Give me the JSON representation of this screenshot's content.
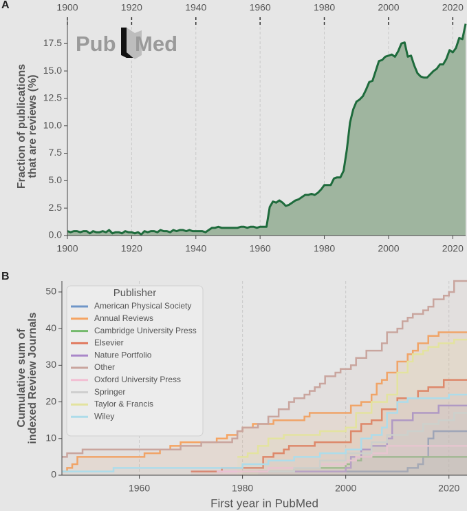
{
  "logo": {
    "left": "Pub",
    "right": "Med"
  },
  "chart_data": [
    {
      "type": "area",
      "panel_label": "A",
      "ylabel": [
        "Fraction of publications",
        "that are reviews (%)"
      ],
      "color": "#1e6b3c",
      "fill_color": "#9fb59f",
      "grid": "x",
      "x_top_axis": true,
      "xlim": [
        1900,
        2024
      ],
      "xticks": [
        1900,
        1920,
        1940,
        1960,
        1980,
        2000,
        2020
      ],
      "ylim": [
        0,
        19.9
      ],
      "yticks": [
        {
          "value": 0,
          "label": "0.0"
        },
        2.5,
        {
          "value": 5,
          "label": "5.0"
        },
        7.5,
        {
          "value": 10,
          "label": "10.0"
        },
        12.5,
        {
          "value": 15,
          "label": "15.0"
        },
        17.5
      ],
      "x": [
        1900,
        1901,
        1902,
        1903,
        1904,
        1905,
        1906,
        1907,
        1908,
        1909,
        1910,
        1911,
        1912,
        1913,
        1914,
        1915,
        1916,
        1917,
        1918,
        1919,
        1920,
        1921,
        1922,
        1923,
        1924,
        1925,
        1926,
        1927,
        1928,
        1929,
        1930,
        1931,
        1932,
        1933,
        1934,
        1935,
        1936,
        1937,
        1938,
        1939,
        1940,
        1941,
        1942,
        1943,
        1944,
        1945,
        1946,
        1947,
        1948,
        1949,
        1950,
        1951,
        1952,
        1953,
        1954,
        1955,
        1956,
        1957,
        1958,
        1959,
        1960,
        1961,
        1962,
        1963,
        1964,
        1965,
        1966,
        1967,
        1968,
        1969,
        1970,
        1971,
        1972,
        1973,
        1974,
        1975,
        1976,
        1977,
        1978,
        1979,
        1980,
        1981,
        1982,
        1983,
        1984,
        1985,
        1986,
        1987,
        1988,
        1989,
        1990,
        1991,
        1992,
        1993,
        1994,
        1995,
        1996,
        1997,
        1998,
        1999,
        2000,
        2001,
        2002,
        2003,
        2004,
        2005,
        2006,
        2007,
        2008,
        2009,
        2010,
        2011,
        2012,
        2013,
        2014,
        2015,
        2016,
        2017,
        2018,
        2019,
        2020,
        2021,
        2022,
        2023,
        2024
      ],
      "values": [
        0.4,
        0.3,
        0.4,
        0.4,
        0.3,
        0.4,
        0.4,
        0.2,
        0.4,
        0.3,
        0.3,
        0.4,
        0.3,
        0.5,
        0.2,
        0.3,
        0.3,
        0.2,
        0.4,
        0.3,
        0.3,
        0.2,
        0.3,
        0.1,
        0.4,
        0.3,
        0.4,
        0.4,
        0.3,
        0.5,
        0.4,
        0.4,
        0.3,
        0.5,
        0.4,
        0.5,
        0.5,
        0.4,
        0.5,
        0.4,
        0.4,
        0.4,
        0.4,
        0.3,
        0.5,
        0.7,
        0.7,
        0.8,
        0.7,
        0.7,
        0.7,
        0.7,
        0.7,
        0.7,
        0.8,
        0.8,
        0.7,
        0.8,
        0.8,
        0.7,
        0.8,
        0.8,
        0.8,
        2.6,
        3.1,
        3.0,
        3.2,
        3.0,
        2.7,
        2.8,
        3.0,
        3.2,
        3.3,
        3.5,
        3.7,
        3.7,
        3.8,
        3.7,
        3.9,
        4.2,
        4.6,
        4.6,
        4.6,
        5.2,
        5.3,
        5.3,
        5.9,
        7.8,
        10.3,
        11.5,
        12.2,
        12.4,
        12.7,
        13.3,
        14.0,
        14.1,
        15.0,
        15.9,
        16.0,
        16.3,
        16.4,
        16.5,
        16.3,
        16.8,
        17.5,
        17.6,
        16.3,
        16.4,
        15.5,
        14.8,
        14.5,
        14.4,
        14.4,
        14.7,
        15.0,
        15.2,
        15.6,
        15.6,
        16.1,
        16.9,
        16.7,
        17.1,
        18.0,
        17.9,
        19.3
      ]
    },
    {
      "type": "step",
      "panel_label": "B",
      "ylabel": [
        "Cumulative sum of",
        "indexed Review Journals"
      ],
      "xlabel": "First year in PubMed",
      "grid": "x",
      "legend": "upper left",
      "legend_title": "Publisher",
      "xlim": [
        1945,
        2023.5
      ],
      "xticks": [
        1960,
        1980,
        2000,
        2020
      ],
      "ylim": [
        0,
        53
      ],
      "yticks": [
        0,
        10,
        20,
        30,
        40,
        50
      ],
      "series": [
        {
          "name": "American Physical Society",
          "color": "#6f96c8",
          "x": [
            2000,
            2012,
            2014,
            2015,
            2016,
            2017
          ],
          "values": [
            1,
            2,
            3,
            5,
            10,
            12
          ]
        },
        {
          "name": "Annual Reviews",
          "color": "#f5a462",
          "x": [
            1945,
            1946,
            1947,
            1948,
            1961,
            1964,
            1966,
            1968,
            1975,
            1977,
            1979,
            1980,
            1982,
            1986,
            1992,
            1993,
            2001,
            2003,
            2005,
            2006,
            2007,
            2008,
            2010,
            2012,
            2013,
            2014,
            2016,
            2018
          ],
          "values": [
            1,
            2,
            3,
            5,
            6,
            7,
            8,
            9,
            10,
            11,
            12,
            13,
            14,
            15,
            16,
            17,
            19,
            20,
            22,
            25,
            26,
            28,
            31,
            33,
            34,
            36,
            38,
            39
          ]
        },
        {
          "name": "Cambridge University Press",
          "color": "#74b96c",
          "x": [
            1980,
            1990,
            2000,
            2001,
            2003
          ],
          "values": [
            1,
            2,
            3,
            4,
            5
          ]
        },
        {
          "name": "Elsevier",
          "color": "#e07a5f",
          "x": [
            1970,
            1976,
            1984,
            1986,
            1988,
            1989,
            1994,
            2001,
            2003,
            2005,
            2007,
            2010,
            2014,
            2016,
            2019
          ],
          "values": [
            1,
            2,
            5,
            6,
            7,
            8,
            9,
            12,
            14,
            15,
            18,
            21,
            23,
            24,
            26
          ]
        },
        {
          "name": "Nature Portfolio",
          "color": "#a987c9",
          "x": [
            1983,
            2000,
            2001,
            2003,
            2005,
            2008,
            2009,
            2013,
            2018
          ],
          "values": [
            1,
            2,
            5,
            7,
            8,
            10,
            15,
            17,
            19
          ]
        },
        {
          "name": "Other",
          "color": "#c9a59e",
          "x": [
            1945,
            1946,
            1949,
            1968,
            1972,
            1978,
            1979,
            1980,
            1983,
            1985,
            1987,
            1989,
            1990,
            1992,
            1993,
            1994,
            1995,
            1996,
            1998,
            1999,
            2001,
            2002,
            2004,
            2007,
            2008,
            2010,
            2011,
            2012,
            2013,
            2015,
            2016,
            2017,
            2019,
            2020,
            2021
          ],
          "values": [
            5,
            6,
            7,
            8,
            9,
            10,
            12,
            13,
            14,
            16,
            18,
            20,
            21,
            22,
            23,
            24,
            25,
            27,
            28,
            29,
            30,
            32,
            34,
            36,
            39,
            40,
            42,
            43,
            44,
            45,
            46,
            48,
            49,
            50,
            53
          ]
        },
        {
          "name": "Oxford University Press",
          "color": "#f2bfd3",
          "x": [
            1975,
            1985,
            1995,
            2000,
            2002,
            2005,
            2008
          ],
          "values": [
            1,
            2,
            3,
            4,
            5,
            6,
            8
          ]
        },
        {
          "name": "Springer",
          "color": "#cfcfcf",
          "x": [
            1985,
            1990,
            1995,
            2000,
            2005,
            2008,
            2012,
            2015,
            2018,
            2021
          ],
          "values": [
            1,
            2,
            4,
            6,
            9,
            11,
            12,
            14,
            15,
            17
          ]
        },
        {
          "name": "Taylor & Francis",
          "color": "#e3e39f",
          "x": [
            1979,
            1981,
            1983,
            1985,
            1988,
            1995,
            2000,
            2002,
            2005,
            2008,
            2010,
            2012,
            2013,
            2015,
            2016,
            2018,
            2021
          ],
          "values": [
            5,
            6,
            8,
            10,
            11,
            12,
            13,
            17,
            20,
            22,
            28,
            31,
            33,
            34,
            35,
            36,
            37
          ]
        },
        {
          "name": "Wiley",
          "color": "#addcea",
          "x": [
            1945,
            1955,
            1980,
            1985,
            1990,
            1995,
            2000,
            2003,
            2005,
            2007,
            2008,
            2010,
            2012,
            2020
          ],
          "values": [
            1,
            2,
            3,
            4,
            5,
            6,
            7,
            10,
            11,
            13,
            17,
            20,
            21,
            22
          ]
        }
      ]
    }
  ]
}
